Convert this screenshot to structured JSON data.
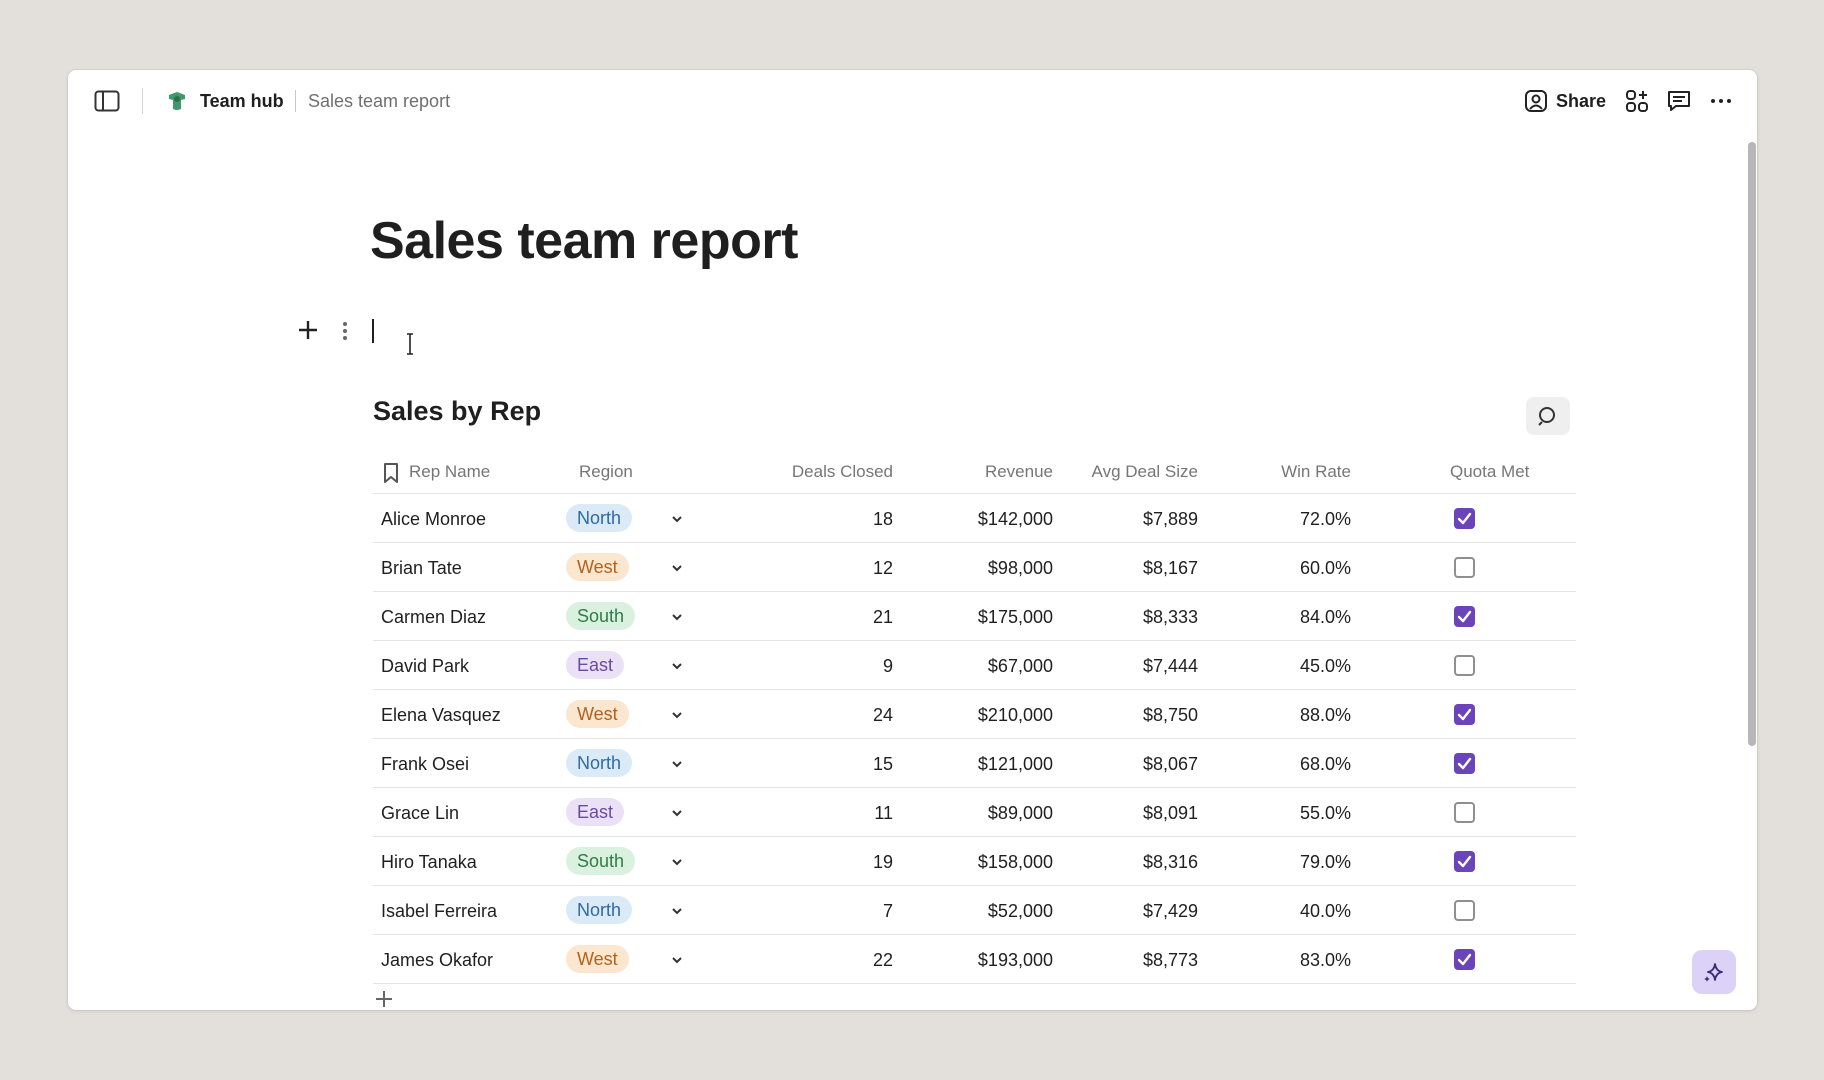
{
  "breadcrumb": {
    "hub": "Team hub",
    "page": "Sales team report"
  },
  "header": {
    "share_label": "Share"
  },
  "page": {
    "title": "Sales team report"
  },
  "table": {
    "title": "Sales by Rep",
    "columns": {
      "rep": "Rep Name",
      "region": "Region",
      "deals": "Deals Closed",
      "revenue": "Revenue",
      "avg": "Avg Deal Size",
      "win": "Win Rate",
      "quota": "Quota Met"
    },
    "rows": [
      {
        "rep": "Alice Monroe",
        "region": "North",
        "deals": "18",
        "revenue": "$142,000",
        "avg": "$7,889",
        "win": "72.0%",
        "quota": true
      },
      {
        "rep": "Brian Tate",
        "region": "West",
        "deals": "12",
        "revenue": "$98,000",
        "avg": "$8,167",
        "win": "60.0%",
        "quota": false
      },
      {
        "rep": "Carmen Diaz",
        "region": "South",
        "deals": "21",
        "revenue": "$175,000",
        "avg": "$8,333",
        "win": "84.0%",
        "quota": true
      },
      {
        "rep": "David Park",
        "region": "East",
        "deals": "9",
        "revenue": "$67,000",
        "avg": "$7,444",
        "win": "45.0%",
        "quota": false
      },
      {
        "rep": "Elena Vasquez",
        "region": "West",
        "deals": "24",
        "revenue": "$210,000",
        "avg": "$8,750",
        "win": "88.0%",
        "quota": true
      },
      {
        "rep": "Frank Osei",
        "region": "North",
        "deals": "15",
        "revenue": "$121,000",
        "avg": "$8,067",
        "win": "68.0%",
        "quota": true
      },
      {
        "rep": "Grace Lin",
        "region": "East",
        "deals": "11",
        "revenue": "$89,000",
        "avg": "$8,091",
        "win": "55.0%",
        "quota": false
      },
      {
        "rep": "Hiro Tanaka",
        "region": "South",
        "deals": "19",
        "revenue": "$158,000",
        "avg": "$8,316",
        "win": "79.0%",
        "quota": true
      },
      {
        "rep": "Isabel Ferreira",
        "region": "North",
        "deals": "7",
        "revenue": "$52,000",
        "avg": "$7,429",
        "win": "40.0%",
        "quota": false
      },
      {
        "rep": "James Okafor",
        "region": "West",
        "deals": "22",
        "revenue": "$193,000",
        "avg": "$8,773",
        "win": "83.0%",
        "quota": true
      }
    ]
  },
  "colors": {
    "accent": "#6a44b8",
    "pill_north": "#dbeaf7",
    "pill_west": "#fbe6cf",
    "pill_south": "#daf1df",
    "pill_east": "#ebe1f6"
  },
  "icons": {
    "sidebar": "sidebar-toggle-icon",
    "hub": "team-hub-icon",
    "share": "person-icon",
    "apps": "apps-grid-icon",
    "comments": "comment-icon",
    "more": "more-horizontal-icon",
    "add_block": "plus-icon",
    "drag": "drag-handle-icon",
    "search": "search-icon",
    "bookmark": "bookmark-icon",
    "chevron": "chevron-down-icon",
    "ai": "sparkle-icon"
  }
}
